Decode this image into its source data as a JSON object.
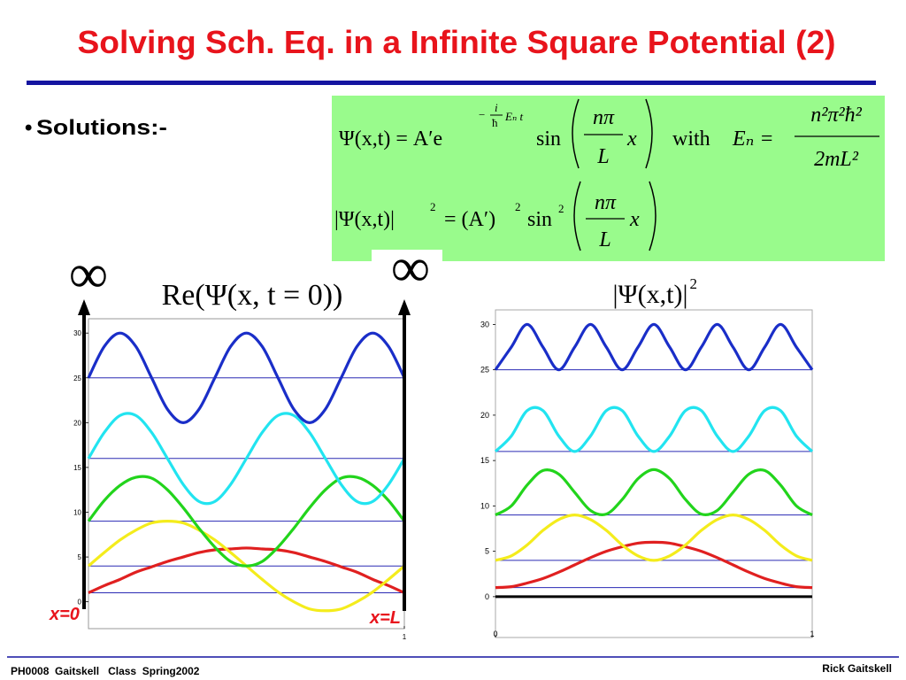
{
  "slide": {
    "title": "Solving Sch. Eq. in a Infinite Square Potential (2)",
    "bullet": "Solutions:-",
    "footer_left": "PH0008  Gaitskell   Class  Spring2002",
    "footer_right": "Rick Gaitskell",
    "wall_labels": [
      "x=0",
      "x=L"
    ],
    "infinity": [
      "∞",
      "∞"
    ]
  },
  "equations": {
    "eq1": {
      "lhs": "Ψ(x,t) = A′e",
      "exp_sign": "−",
      "exp_num": "i",
      "exp_den": "ħ",
      "exp_tail": "Eₙ t",
      "sin": "sin",
      "arg_num": "nπ",
      "arg_den": "L",
      "arg_x": "x",
      "with": "with",
      "en": "Eₙ =",
      "en_num": "n²π²ħ²",
      "en_den": "2mL²"
    },
    "eq2": {
      "lhs": "|Ψ(x,t)|",
      "lhs_exp": "2",
      "eq": "= (A′)",
      "amp_exp": "2",
      "sin": "sin",
      "sin_exp": "2",
      "arg_num": "nπ",
      "arg_den": "L",
      "arg_x": "x"
    }
  },
  "chart_data": [
    {
      "type": "line",
      "title": "Re(Ψ(x, t = 0))",
      "x": [
        0,
        0.05,
        0.1,
        0.15,
        0.2,
        0.25,
        0.3,
        0.35,
        0.4,
        0.45,
        0.5,
        0.55,
        0.6,
        0.65,
        0.7,
        0.75,
        0.8,
        0.85,
        0.9,
        0.95,
        1
      ],
      "xlim": [
        0,
        1
      ],
      "ylim": [
        -3,
        31.6
      ],
      "xticks": [
        1
      ],
      "yticks": [
        0,
        5,
        10,
        15,
        20,
        25,
        30
      ],
      "series": [
        {
          "color": "#e02020",
          "baseline": 1,
          "values": [
            1,
            1.8,
            2.5,
            3.3,
            3.9,
            4.5,
            5,
            5.5,
            5.8,
            5.9,
            6,
            5.9,
            5.8,
            5.5,
            5,
            4.5,
            3.9,
            3.3,
            2.5,
            1.8,
            1
          ]
        },
        {
          "color": "#f4ec1c",
          "baseline": 4,
          "values": [
            4,
            5.5,
            6.9,
            8,
            8.8,
            9,
            8.8,
            8,
            6.9,
            5.5,
            4,
            2.5,
            1.1,
            0,
            -0.8,
            -1,
            -0.8,
            0,
            1.1,
            2.5,
            4
          ]
        },
        {
          "color": "#22d41c",
          "baseline": 9,
          "values": [
            9,
            11.3,
            13,
            13.9,
            13.8,
            12.5,
            10.5,
            8.2,
            6.1,
            4.5,
            4,
            4.5,
            6.1,
            8.2,
            10.5,
            12.5,
            13.8,
            13.9,
            13,
            11.3,
            9
          ]
        },
        {
          "color": "#22e4f0",
          "baseline": 16,
          "values": [
            16,
            18.9,
            20.8,
            20.8,
            18.9,
            16,
            13.1,
            11.2,
            11.2,
            13.1,
            16,
            18.9,
            20.8,
            20.8,
            18.9,
            16,
            13.1,
            11.2,
            11.2,
            13.1,
            16
          ]
        },
        {
          "color": "#1a2ec8",
          "baseline": 25,
          "values": [
            25,
            28.5,
            30,
            28.5,
            25,
            21.5,
            20,
            21.5,
            25,
            28.5,
            30,
            28.5,
            25,
            21.5,
            20,
            21.5,
            25,
            28.5,
            30,
            28.5,
            25
          ]
        }
      ]
    },
    {
      "type": "line",
      "title": "|Ψ(x,t)|",
      "title_exponent": "2",
      "x": [
        0,
        0.05,
        0.1,
        0.15,
        0.2,
        0.25,
        0.3,
        0.35,
        0.4,
        0.45,
        0.5,
        0.55,
        0.6,
        0.65,
        0.7,
        0.75,
        0.8,
        0.85,
        0.9,
        0.95,
        1
      ],
      "xlim": [
        0,
        1
      ],
      "ylim": [
        -4.5,
        31.6
      ],
      "xticks": [
        0,
        1
      ],
      "yticks": [
        0,
        5,
        10,
        15,
        20,
        25,
        30
      ],
      "zero_line": true,
      "series": [
        {
          "color": "#e02020",
          "baseline": 1,
          "values": [
            1,
            1.1,
            1.5,
            2,
            2.7,
            3.5,
            4.3,
            5,
            5.5,
            5.9,
            6,
            5.9,
            5.5,
            5,
            4.3,
            3.5,
            2.7,
            2,
            1.5,
            1.1,
            1
          ]
        },
        {
          "color": "#f4ec1c",
          "baseline": 4,
          "values": [
            4,
            4.5,
            5.7,
            7.3,
            8.5,
            9,
            8.5,
            7.3,
            5.7,
            4.5,
            4,
            4.5,
            5.7,
            7.3,
            8.5,
            9,
            8.5,
            7.3,
            5.7,
            4.5,
            4
          ]
        },
        {
          "color": "#22d41c",
          "baseline": 9,
          "values": [
            9,
            10,
            12.3,
            13.9,
            13.5,
            11.5,
            9.5,
            9.1,
            10.7,
            13,
            14,
            13,
            10.7,
            9.1,
            9.5,
            11.5,
            13.5,
            13.9,
            12.3,
            10,
            9
          ]
        },
        {
          "color": "#22e4f0",
          "baseline": 16,
          "values": [
            16,
            17.7,
            20.5,
            20.5,
            17.7,
            16,
            17.7,
            20.5,
            20.5,
            17.7,
            16,
            17.7,
            20.5,
            20.5,
            17.7,
            16,
            17.7,
            20.5,
            20.5,
            17.7,
            16
          ]
        },
        {
          "color": "#1a2ec8",
          "baseline": 25,
          "values": [
            25,
            27.5,
            30,
            27.5,
            25,
            27.5,
            30,
            27.5,
            25,
            27.5,
            30,
            27.5,
            25,
            27.5,
            30,
            27.5,
            25,
            27.5,
            30,
            27.5,
            25
          ]
        }
      ]
    }
  ]
}
